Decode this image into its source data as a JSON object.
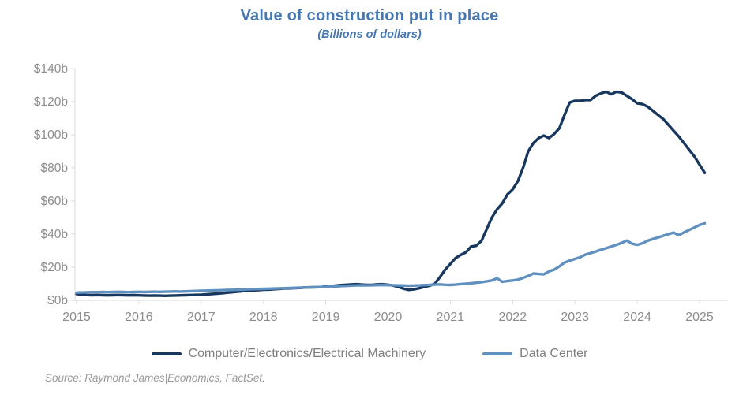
{
  "title": "Value of construction put in place",
  "subtitle": "(Billions of dollars)",
  "source": "Source: Raymond James|Economics, FactSet.",
  "colors": {
    "title_blue": "#4577B2",
    "axis_line": "#D9D9D9",
    "tick_label": "#8c8c8c",
    "legend_text": "#7f7f7f",
    "series_dark": "#17375E",
    "series_light": "#6090C0"
  },
  "legend": {
    "items": [
      {
        "label": "Computer/Electronics/Electrical Machinery"
      },
      {
        "label": "Data Center"
      }
    ]
  },
  "chart_data": {
    "type": "line",
    "title": "Value of construction put in place",
    "subtitle": "(Billions of dollars)",
    "frequency": "monthly",
    "x_start_year": 2015,
    "x_start_month": 1,
    "x_tick_labels": [
      "2015",
      "2016",
      "2017",
      "2018",
      "2019",
      "2020",
      "2021",
      "2022",
      "2023",
      "2024",
      "2025"
    ],
    "y_tick_labels": [
      "$0b",
      "$20b",
      "$40b",
      "$60b",
      "$80b",
      "$100b",
      "$120b",
      "$140b"
    ],
    "y_tick_values": [
      0,
      20,
      40,
      60,
      80,
      100,
      120,
      140
    ],
    "ylim": [
      0,
      140
    ],
    "xlim_years": [
      2015,
      2025.45
    ],
    "grid": false,
    "legend_position": "bottom",
    "series": [
      {
        "name": "Computer/Electronics/Electrical Machinery",
        "color": "#17375E",
        "values": [
          3.8,
          3.4,
          3.2,
          3.1,
          3.2,
          3.1,
          3.0,
          3.1,
          3.2,
          3.1,
          3.0,
          3.1,
          3.0,
          2.9,
          2.8,
          2.9,
          2.8,
          2.7,
          2.8,
          2.9,
          3.0,
          3.1,
          3.2,
          3.3,
          3.4,
          3.6,
          3.8,
          4.0,
          4.3,
          4.6,
          4.9,
          5.2,
          5.5,
          5.8,
          6.0,
          6.2,
          6.4,
          6.5,
          6.7,
          6.9,
          7.1,
          7.2,
          7.4,
          7.5,
          7.7,
          7.8,
          7.9,
          8.0,
          8.3,
          8.6,
          8.9,
          9.2,
          9.4,
          9.6,
          9.7,
          9.5,
          9.3,
          9.4,
          9.6,
          9.7,
          9.4,
          8.9,
          8.1,
          7.0,
          6.3,
          6.6,
          7.3,
          8.1,
          8.8,
          10.0,
          14.0,
          18.5,
          22.0,
          25.5,
          27.5,
          29.0,
          32.5,
          33.0,
          36.0,
          43.0,
          50.0,
          55.0,
          58.5,
          64.0,
          67.0,
          72.0,
          80.0,
          90.0,
          95.0,
          98.0,
          99.5,
          98.0,
          100.5,
          104.0,
          112.0,
          119.5,
          120.5,
          120.5,
          121.0,
          121.0,
          123.5,
          125.0,
          126.0,
          124.5,
          126.0,
          125.5,
          123.5,
          121.5,
          119.0,
          118.5,
          117.0,
          114.5,
          112.0,
          109.5,
          106.0,
          102.5,
          99.0,
          95.0,
          91.0,
          87.0,
          82.0,
          77.0
        ]
      },
      {
        "name": "Data Center",
        "color": "#6090C0",
        "values": [
          4.6,
          4.7,
          4.8,
          4.9,
          4.9,
          5.0,
          4.9,
          5.0,
          5.1,
          5.0,
          4.9,
          5.0,
          5.1,
          5.0,
          5.1,
          5.2,
          5.1,
          5.2,
          5.3,
          5.4,
          5.3,
          5.4,
          5.5,
          5.6,
          5.7,
          5.8,
          5.9,
          6.0,
          6.1,
          6.2,
          6.3,
          6.4,
          6.5,
          6.6,
          6.7,
          6.8,
          6.9,
          7.0,
          7.1,
          7.2,
          7.3,
          7.4,
          7.5,
          7.6,
          7.7,
          7.8,
          7.9,
          8.0,
          8.1,
          8.3,
          8.4,
          8.6,
          8.7,
          8.9,
          9.0,
          9.1,
          9.0,
          9.1,
          9.2,
          9.3,
          9.2,
          9.1,
          9.0,
          8.9,
          8.8,
          8.9,
          9.0,
          9.2,
          9.3,
          9.5,
          9.6,
          9.4,
          9.3,
          9.5,
          9.8,
          10.0,
          10.3,
          10.6,
          11.0,
          11.5,
          12.0,
          13.3,
          11.2,
          11.6,
          12.0,
          12.5,
          13.5,
          14.7,
          16.2,
          15.9,
          15.7,
          17.5,
          18.5,
          20.5,
          22.8,
          24.0,
          25.0,
          26.0,
          27.6,
          28.5,
          29.5,
          30.5,
          31.5,
          32.5,
          33.5,
          34.7,
          36.1,
          34.2,
          33.5,
          34.5,
          36.0,
          37.1,
          38.0,
          39.0,
          40.0,
          40.9,
          39.4,
          41.0,
          42.5,
          44.0,
          45.5,
          46.5
        ]
      }
    ]
  }
}
